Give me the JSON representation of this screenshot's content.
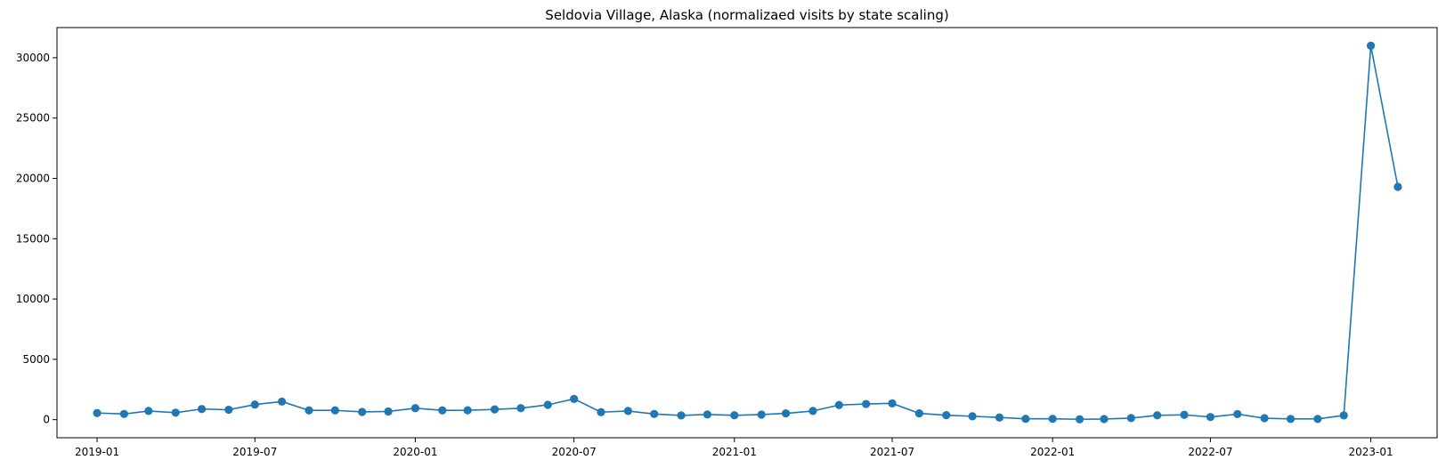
{
  "chart_data": {
    "type": "line",
    "title": "Seldovia Village, Alaska (normalizaed visits by state scaling)",
    "xlabel": "",
    "ylabel": "",
    "x_ticks": [
      "2019-01",
      "2019-07",
      "2020-01",
      "2020-07",
      "2021-01",
      "2021-07",
      "2022-01",
      "2022-07",
      "2023-01"
    ],
    "y_ticks": [
      "0",
      "5000",
      "10000",
      "15000",
      "20000",
      "25000",
      "30000"
    ],
    "ylim": [
      -1500,
      32500
    ],
    "xlim": [
      "2018-11-16",
      "2023-03-18"
    ],
    "grid": false,
    "marker": "circle",
    "color": "#1f77b4",
    "series": [
      {
        "x": [
          "2019-01",
          "2019-02",
          "2019-03",
          "2019-04",
          "2019-05",
          "2019-06",
          "2019-07",
          "2019-08",
          "2019-09",
          "2019-10",
          "2019-11",
          "2019-12",
          "2020-01",
          "2020-02",
          "2020-03",
          "2020-04",
          "2020-05",
          "2020-06",
          "2020-07",
          "2020-08",
          "2020-09",
          "2020-10",
          "2020-11",
          "2020-12",
          "2021-01",
          "2021-02",
          "2021-03",
          "2021-04",
          "2021-05",
          "2021-06",
          "2021-07",
          "2021-08",
          "2021-09",
          "2021-10",
          "2021-11",
          "2021-12",
          "2022-01",
          "2022-02",
          "2022-03",
          "2022-04",
          "2022-05",
          "2022-06",
          "2022-07",
          "2022-08",
          "2022-09",
          "2022-10",
          "2022-11",
          "2022-12",
          "2023-01",
          "2023-02"
        ],
        "y": [
          550,
          470,
          720,
          580,
          880,
          820,
          1250,
          1500,
          770,
          770,
          640,
          680,
          950,
          770,
          780,
          850,
          950,
          1230,
          1720,
          620,
          720,
          470,
          350,
          430,
          360,
          420,
          520,
          720,
          1210,
          1300,
          1350,
          520,
          370,
          280,
          180,
          70,
          70,
          30,
          50,
          130,
          360,
          400,
          220,
          460,
          120,
          60,
          60,
          350,
          31000,
          19300
        ]
      }
    ]
  }
}
